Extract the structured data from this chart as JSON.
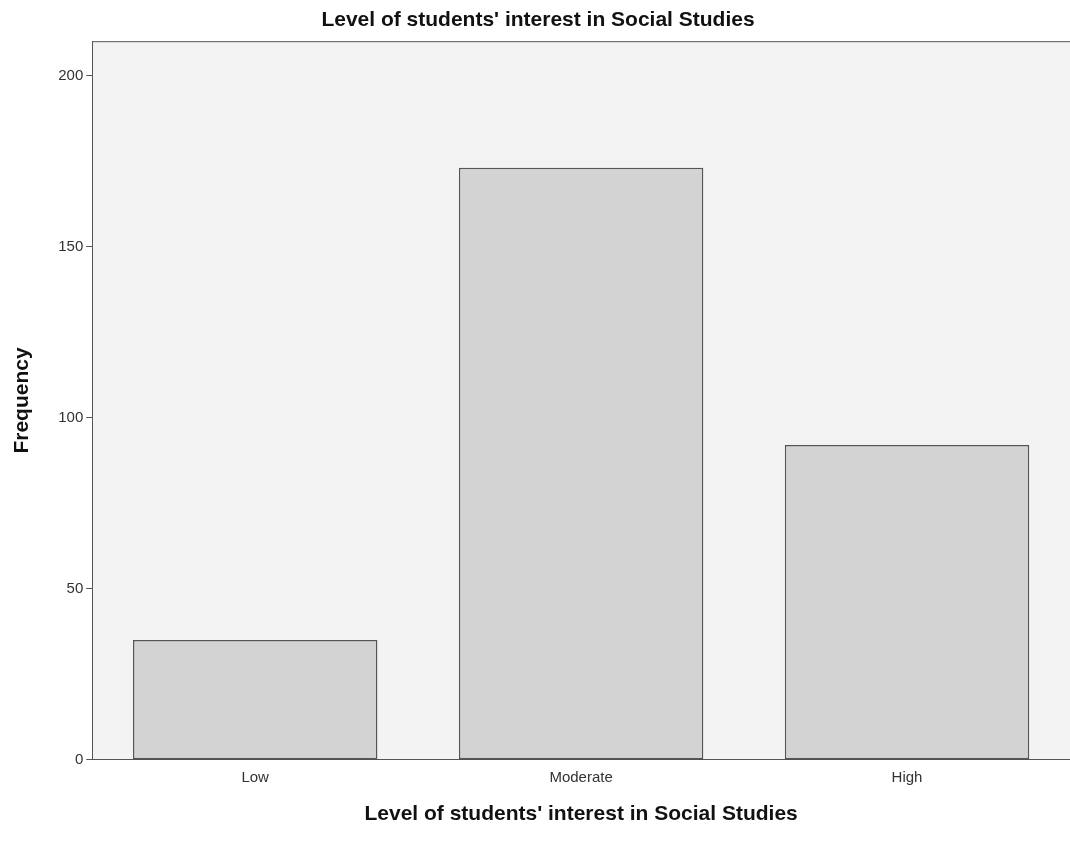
{
  "chart_data": {
    "type": "bar",
    "title": "Level of students' interest in Social Studies",
    "xlabel": "Level of students' interest in Social Studies",
    "ylabel": "Frequency",
    "categories": [
      "Low",
      "Moderate",
      "High"
    ],
    "values": [
      35,
      173,
      92
    ],
    "color": "#d3d3d3",
    "ylim": [
      0,
      210
    ],
    "yticks": [
      0,
      50,
      100,
      150,
      200
    ],
    "grid": false,
    "legend": false
  }
}
